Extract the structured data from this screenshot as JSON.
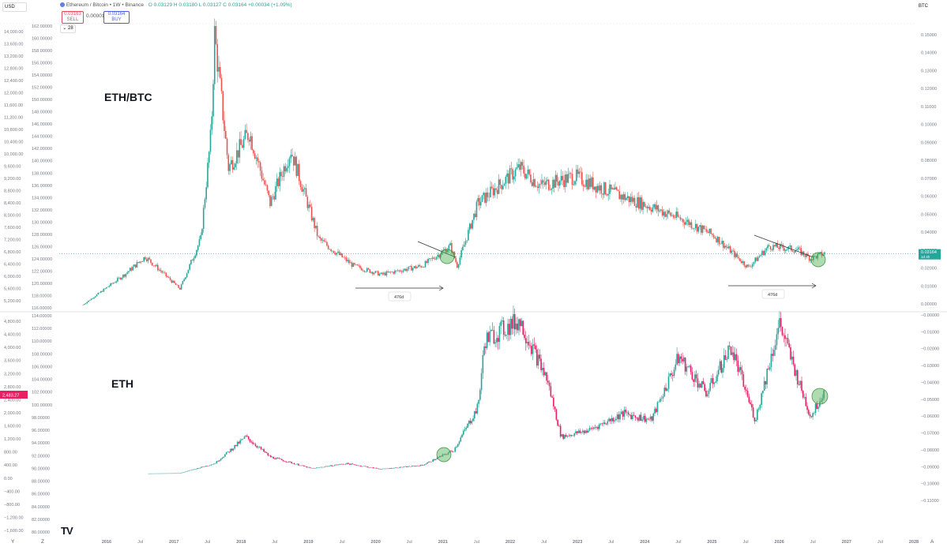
{
  "toolbar": {
    "currency_left": "USD",
    "currency_right": "BTC",
    "symbol_title": "Ethereum / Bitcoin • 1W • Binance",
    "ohlc": "O 0.03129  H 0.03180  L 0.03127  C 0.03164  +0.00034 (+1.09%)",
    "sell_price": "0.03163",
    "sell_label": "SELL",
    "spread": "0.00001",
    "buy_price": "0.03164",
    "buy_label": "BUY",
    "indicator_count": "28"
  },
  "panes": {
    "top_label": "ETH/BTC",
    "bottom_label": "ETH",
    "range_label_1": "476d",
    "range_label_2": "476d",
    "last_price_tag": "0.03164",
    "last_price_sub": "1d 4h",
    "eth_price_tag": "2,483.27"
  },
  "footer": {
    "left_y": "Y",
    "left_z": "Z",
    "right_a": "A",
    "logo": "TV"
  },
  "colors": {
    "up": "#26a69a",
    "down": "#ef5350",
    "ethline": "#e91e63",
    "grid": "#f0f3fa",
    "highlight": "#4caf50"
  },
  "chart_data": [
    {
      "type": "line",
      "title": "ETH/BTC",
      "ylabel": "",
      "x": [
        "2016",
        "2017",
        "2018",
        "2019",
        "2020",
        "2021",
        "2022",
        "2023",
        "2024",
        "2025",
        "2026"
      ],
      "y": [
        0.01,
        0.043,
        0.068,
        0.032,
        0.022,
        0.036,
        0.078,
        0.07,
        0.055,
        0.0245,
        0.0316
      ],
      "ylim": [
        0.0,
        0.16
      ],
      "right_axis_ticks": [
        "0.15000",
        "0.14000",
        "0.13000",
        "0.12000",
        "0.11000",
        "0.10000",
        "0.09000",
        "0.08000",
        "0.07000",
        "0.06000",
        "0.05000",
        "0.04000",
        "0.03000",
        "0.02000",
        "0.01000",
        "0.00000"
      ],
      "left_axis_ticks": [
        "14,000.00",
        "13,600.00",
        "13,200.00",
        "12,800.00",
        "12,400.00",
        "12,000.00",
        "11,600.00",
        "11,200.00",
        "10,800.00",
        "10,400.00",
        "10,000.00",
        "9,600.00",
        "9,200.00",
        "8,800.00",
        "8,400.00",
        "8,000.00",
        "7,600.00",
        "7,200.00",
        "6,800.00",
        "6,400.00",
        "6,000.00",
        "5,600.00",
        "5,200.00"
      ],
      "mid_axis_ticks": [
        "162.00000",
        "160.00000",
        "158.00000",
        "156.00000",
        "154.00000",
        "152.00000",
        "150.00000",
        "148.00000",
        "146.00000",
        "144.00000",
        "142.00000",
        "140.00000",
        "138.00000",
        "136.00000",
        "134.00000",
        "132.00000",
        "130.00000",
        "128.00000",
        "126.00000",
        "124.00000",
        "122.00000",
        "120.00000",
        "118.00000",
        "116.00000"
      ],
      "series": [
        {
          "name": "ETH/BTC",
          "values": [
            0.01,
            0.043,
            0.068,
            0.032,
            0.022,
            0.036,
            0.078,
            0.07,
            0.055,
            0.0245,
            0.0316
          ]
        }
      ]
    },
    {
      "type": "line",
      "title": "ETH",
      "x": [
        "2016",
        "2017",
        "2018",
        "2019",
        "2020",
        "2021",
        "2022",
        "2023",
        "2024",
        "2025",
        "2026"
      ],
      "y": [
        10,
        300,
        1100,
        130,
        150,
        750,
        4600,
        1300,
        2300,
        3600,
        2480
      ],
      "ylim": [
        -1800,
        4800
      ],
      "left_axis_ticks": [
        "4,800.00",
        "4,400.00",
        "4,000.00",
        "3,600.00",
        "3,200.00",
        "2,800.00",
        "2,400.00",
        "2,000.00",
        "1,600.00",
        "1,200.00",
        "800.00",
        "400.00",
        "0.00",
        "−400.00",
        "−800.00",
        "−1,200.00",
        "−1,600.00"
      ],
      "mid_axis_ticks": [
        "114.00000",
        "112.00000",
        "110.00000",
        "108.00000",
        "106.00000",
        "104.00000",
        "102.00000",
        "100.00000",
        "98.00000",
        "96.00000",
        "94.00000",
        "92.00000",
        "90.00000",
        "88.00000",
        "86.00000",
        "84.00000",
        "82.00000",
        "80.00000"
      ],
      "right_axis_ticks": [
        "−0.00000",
        "−0.01000",
        "−0.02000",
        "−0.03000",
        "−0.04000",
        "−0.05000",
        "−0.06000",
        "−0.07000",
        "−0.08000",
        "−0.09000",
        "−0.10000",
        "−0.11000"
      ],
      "series": [
        {
          "name": "ETH",
          "values": [
            10,
            300,
            1100,
            130,
            150,
            750,
            4600,
            1300,
            2300,
            3600,
            2480
          ]
        }
      ]
    }
  ],
  "x_axis_labels": [
    "2016",
    "Jul",
    "2017",
    "Jul",
    "2018",
    "Jul",
    "2019",
    "Jul",
    "2020",
    "Jul",
    "2021",
    "Jul",
    "2022",
    "Jul",
    "2023",
    "Jul",
    "2024",
    "Jul",
    "2025",
    "Jul",
    "2026",
    "Jul",
    "2027",
    "Jul",
    "2028"
  ]
}
